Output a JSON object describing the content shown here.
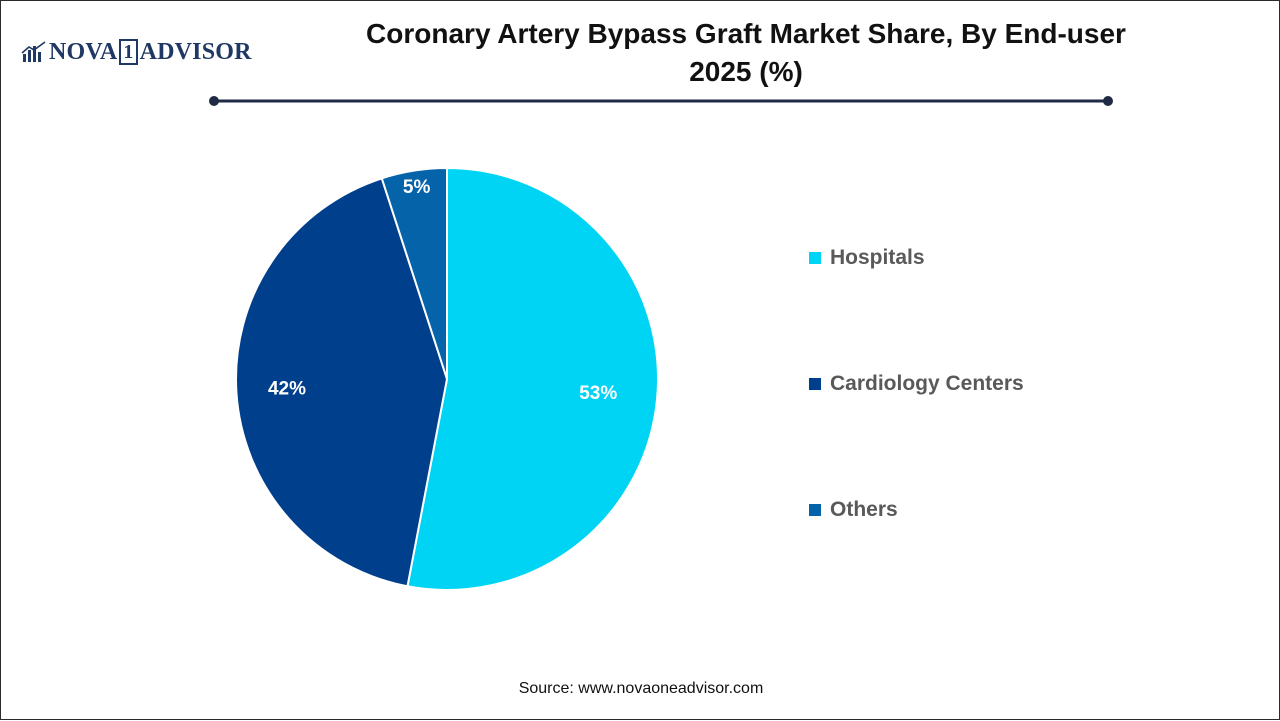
{
  "logo": {
    "part1": "NOVA",
    "box": "1",
    "part2": "ADVISOR"
  },
  "header": {
    "title_line1": "Coronary Artery Bypass Graft Market Share, By End-user",
    "title_line2": "2025 (%)"
  },
  "chart_data": {
    "type": "pie",
    "title": "Coronary Artery Bypass Graft Market Share, By End-user 2025 (%)",
    "categories": [
      "Hospitals",
      "Cardiology Centers",
      "Others"
    ],
    "values": [
      53,
      42,
      5
    ],
    "unit": "%",
    "data_labels": [
      "53%",
      "42%",
      "5%"
    ],
    "colors": [
      "#00d4f5",
      "#003f8c",
      "#0563aa"
    ],
    "label_colors": [
      "#ffffff",
      "#ffffff",
      "#ffffff"
    ],
    "start": "12 o'clock",
    "direction": "clockwise",
    "legend_position": "right"
  },
  "source": "Source: www.novaoneadvisor.com"
}
